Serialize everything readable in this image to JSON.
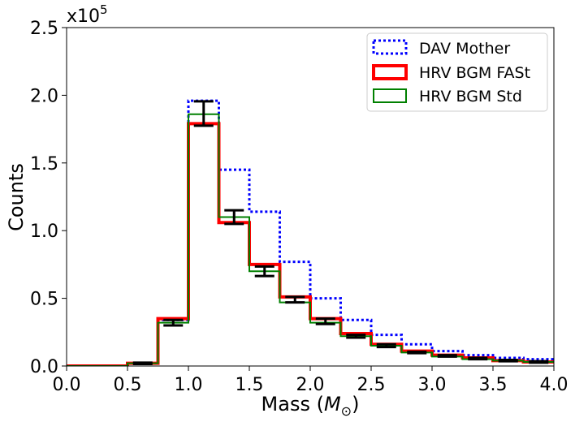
{
  "chart_data": {
    "type": "histogram-step",
    "title": "",
    "xlabel_main": "Mass (",
    "xlabel_symbol": "M",
    "xlabel_sub": "⊙",
    "xlabel_close": ")",
    "ylabel": "Counts",
    "y_offset_base": "x10",
    "y_offset_exp": "5",
    "xlim": [
      0.0,
      4.0
    ],
    "ylim": [
      0.0,
      2.5
    ],
    "xticks": [
      0.0,
      0.5,
      1.0,
      1.5,
      2.0,
      2.5,
      3.0,
      3.5,
      4.0
    ],
    "xtick_labels": [
      "0.0",
      "0.5",
      "1.0",
      "1.5",
      "2.0",
      "2.5",
      "3.0",
      "3.5",
      "4.0"
    ],
    "yticks": [
      0.0,
      0.5,
      1.0,
      1.5,
      2.0,
      2.5
    ],
    "ytick_labels": [
      "0.0",
      "0.5",
      "1.0",
      "1.5",
      "2.0",
      "2.5"
    ],
    "bin_edges": [
      0.0,
      0.25,
      0.5,
      0.75,
      1.0,
      1.25,
      1.5,
      1.75,
      2.0,
      2.25,
      2.5,
      2.75,
      3.0,
      3.25,
      3.5,
      3.75,
      4.0
    ],
    "legend_position": "top-right",
    "grid": false,
    "series": [
      {
        "name": "DAV Mother",
        "color": "#0000ff",
        "style": "dotted",
        "values": [
          0.0,
          0.0,
          0.02,
          0.34,
          1.96,
          1.45,
          1.14,
          0.77,
          0.5,
          0.34,
          0.23,
          0.16,
          0.11,
          0.08,
          0.06,
          0.05
        ]
      },
      {
        "name": "HRV BGM FASt",
        "color": "#ff0000",
        "style": "solid-thick",
        "values": [
          0.0,
          0.0,
          0.02,
          0.35,
          1.79,
          1.06,
          0.75,
          0.51,
          0.35,
          0.24,
          0.16,
          0.11,
          0.08,
          0.06,
          0.04,
          0.03
        ]
      },
      {
        "name": "HRV BGM Std",
        "color": "#008000",
        "style": "solid",
        "values": [
          0.0,
          0.0,
          0.02,
          0.32,
          1.86,
          1.1,
          0.7,
          0.47,
          0.32,
          0.22,
          0.15,
          0.1,
          0.07,
          0.05,
          0.04,
          0.03
        ]
      }
    ],
    "error_bars": {
      "color": "#000000",
      "x": [
        0.625,
        0.875,
        1.125,
        1.375,
        1.625,
        1.875,
        2.125,
        2.375,
        2.625,
        2.875,
        3.125,
        3.375,
        3.625,
        3.875
      ],
      "center": [
        0.02,
        0.32,
        1.865,
        1.1,
        0.7,
        0.49,
        0.33,
        0.22,
        0.15,
        0.1,
        0.075,
        0.055,
        0.04,
        0.03
      ],
      "low": [
        0.015,
        0.3,
        1.775,
        1.05,
        0.665,
        0.47,
        0.31,
        0.21,
        0.14,
        0.095,
        0.07,
        0.05,
        0.035,
        0.025
      ],
      "high": [
        0.025,
        0.34,
        1.955,
        1.15,
        0.735,
        0.51,
        0.35,
        0.23,
        0.16,
        0.105,
        0.08,
        0.06,
        0.045,
        0.035
      ]
    }
  }
}
